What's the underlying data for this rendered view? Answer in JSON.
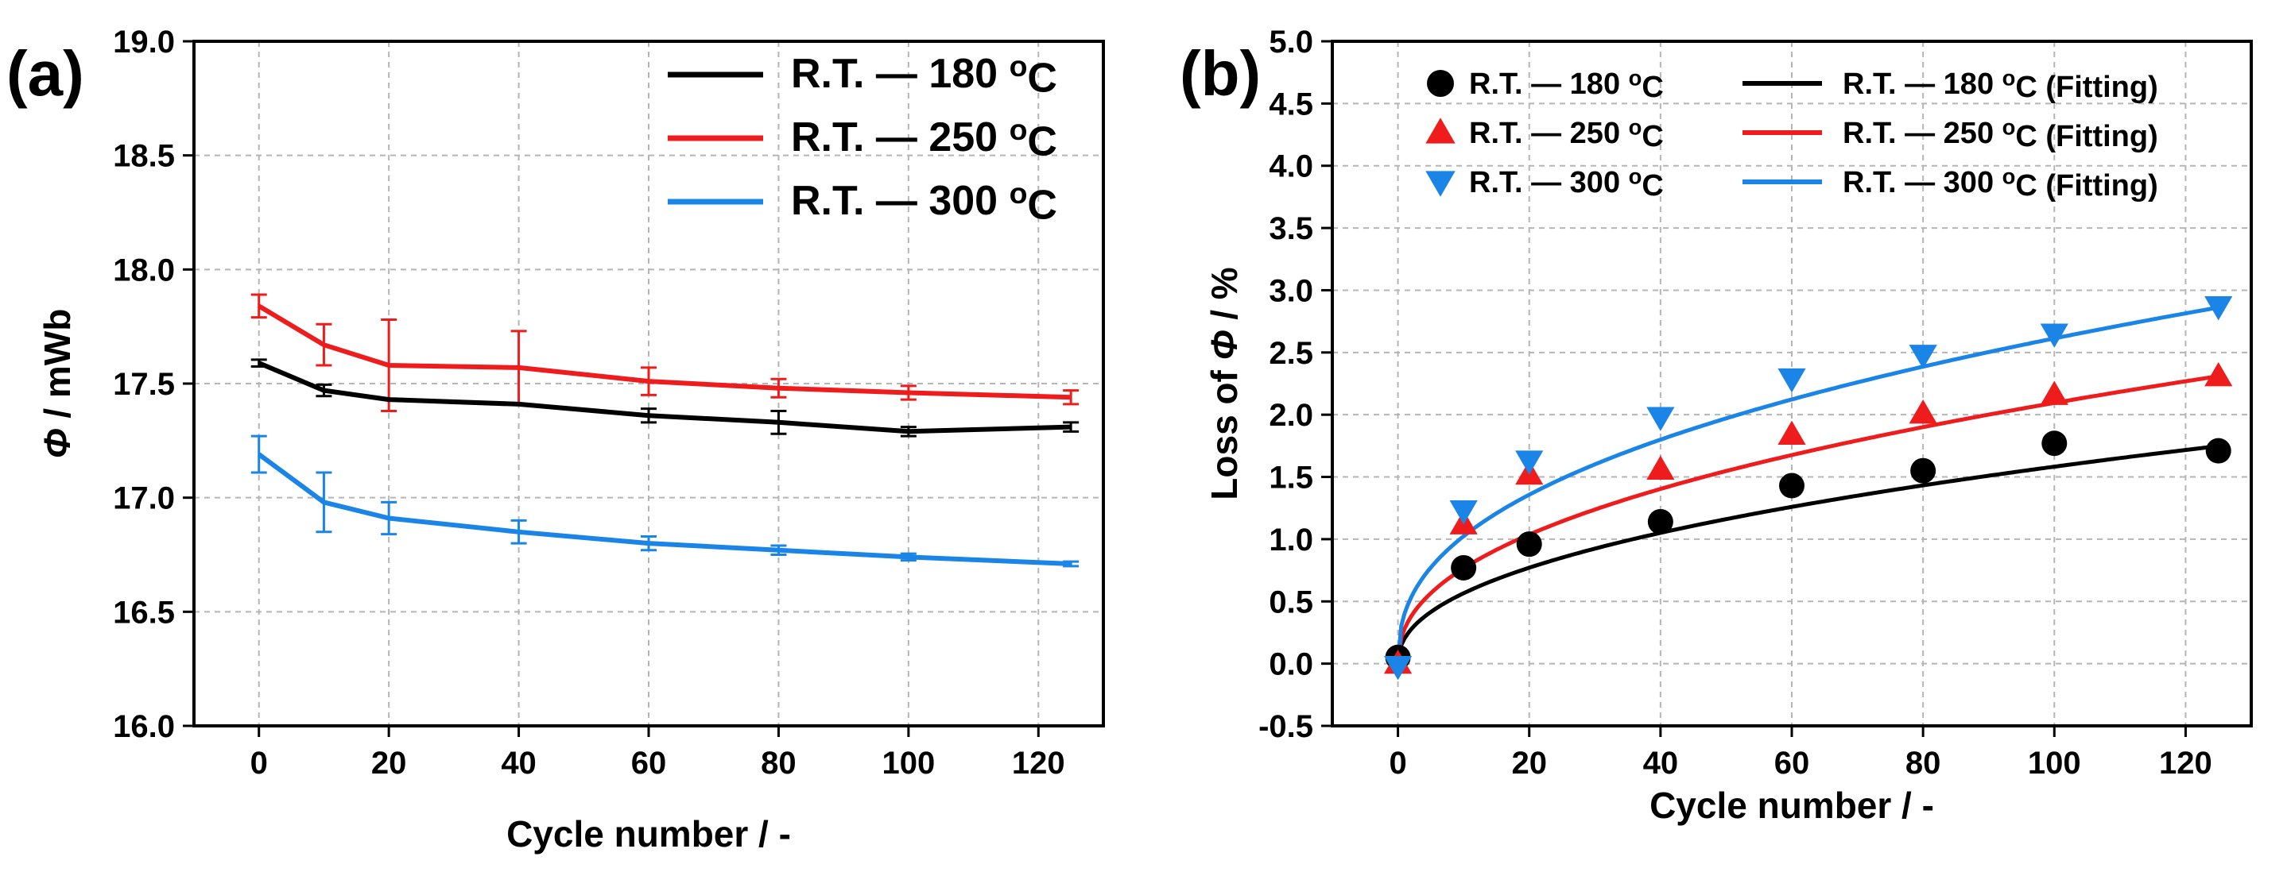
{
  "chart_data": [
    {
      "panel": "(a)",
      "type": "line",
      "xlabel": "Cycle number / -",
      "ylabel_symbol": "Φ",
      "ylabel_unit": " / mWb",
      "xlim": [
        -10,
        130
      ],
      "ylim": [
        16.0,
        19.0
      ],
      "xticks": [
        0,
        20,
        40,
        60,
        80,
        100,
        120
      ],
      "yticks": [
        16.0,
        16.5,
        17.0,
        17.5,
        18.0,
        18.5,
        19.0
      ],
      "xtick_labels": [
        "0",
        "20",
        "40",
        "60",
        "80",
        "100",
        "120"
      ],
      "ytick_labels": [
        "16.0",
        "16.5",
        "17.0",
        "17.5",
        "18.0",
        "18.5",
        "19.0"
      ],
      "grid": true,
      "legend_position": "top-right",
      "x": [
        0,
        10,
        20,
        40,
        60,
        80,
        100,
        125
      ],
      "series": [
        {
          "name": "R.T. — 180 °C",
          "color": "#000000",
          "values": [
            17.59,
            17.47,
            17.43,
            17.41,
            17.36,
            17.33,
            17.29,
            17.31
          ],
          "errors": [
            0.015,
            0.025,
            0.0,
            0.0,
            0.03,
            0.05,
            0.02,
            0.02
          ]
        },
        {
          "name": "R.T. — 250 °C",
          "color": "#ee1c1c",
          "values": [
            17.84,
            17.67,
            17.58,
            17.57,
            17.51,
            17.48,
            17.46,
            17.44
          ],
          "errors": [
            0.05,
            0.09,
            0.2,
            0.16,
            0.06,
            0.04,
            0.03,
            0.03
          ]
        },
        {
          "name": "R.T. — 300 °C",
          "color": "#1a85e6",
          "values": [
            17.19,
            16.98,
            16.91,
            16.85,
            16.8,
            16.77,
            16.74,
            16.71
          ],
          "errors": [
            0.08,
            0.13,
            0.07,
            0.05,
            0.03,
            0.02,
            0.015,
            0.01
          ]
        }
      ]
    },
    {
      "panel": "(b)",
      "type": "scatter",
      "xlabel": "Cycle number / -",
      "ylabel_prefix": "Loss of ",
      "ylabel_symbol": "Φ",
      "ylabel_unit": " / %",
      "xlim": [
        -10,
        130
      ],
      "ylim": [
        -0.5,
        5.0
      ],
      "xticks": [
        0,
        20,
        40,
        60,
        80,
        100,
        120
      ],
      "yticks": [
        -0.5,
        0.0,
        0.5,
        1.0,
        1.5,
        2.0,
        2.5,
        3.0,
        3.5,
        4.0,
        4.5,
        5.0
      ],
      "xtick_labels": [
        "0",
        "20",
        "40",
        "60",
        "80",
        "100",
        "120"
      ],
      "ytick_labels": [
        "-0.5",
        "0.0",
        "0.5",
        "1.0",
        "1.5",
        "2.0",
        "2.5",
        "3.0",
        "3.5",
        "4.0",
        "4.5",
        "5.0"
      ],
      "grid": true,
      "legend_position": "top",
      "x": [
        0,
        10,
        20,
        40,
        60,
        80,
        100,
        125
      ],
      "series": [
        {
          "name": "R.T. — 180 °C",
          "marker": "circle",
          "color": "#000000",
          "values": [
            0.05,
            0.77,
            0.96,
            1.14,
            1.43,
            1.55,
            1.77,
            1.71
          ]
        },
        {
          "name": "R.T. — 250 °C",
          "marker": "triangle-up",
          "color": "#ee1c1c",
          "values": [
            0.0,
            1.12,
            1.52,
            1.56,
            1.84,
            2.01,
            2.16,
            2.31
          ]
        },
        {
          "name": "R.T. — 300 °C",
          "marker": "triangle-down",
          "color": "#1a85e6",
          "values": [
            -0.02,
            1.23,
            1.63,
            1.98,
            2.29,
            2.48,
            2.65,
            2.87
          ]
        }
      ],
      "fits": [
        {
          "name": "R.T. — 180 °C (Fitting)",
          "color": "#000000",
          "form": "a*x^b",
          "a": 0.202,
          "b": 0.447
        },
        {
          "name": "R.T. — 250 °C (Fitting)",
          "color": "#ee1c1c",
          "form": "a*x^b",
          "a": 0.28,
          "b": 0.437
        },
        {
          "name": "R.T. — 300 °C (Fitting)",
          "color": "#1a85e6",
          "form": "a*x^b",
          "a": 0.401,
          "b": 0.407
        }
      ]
    }
  ]
}
